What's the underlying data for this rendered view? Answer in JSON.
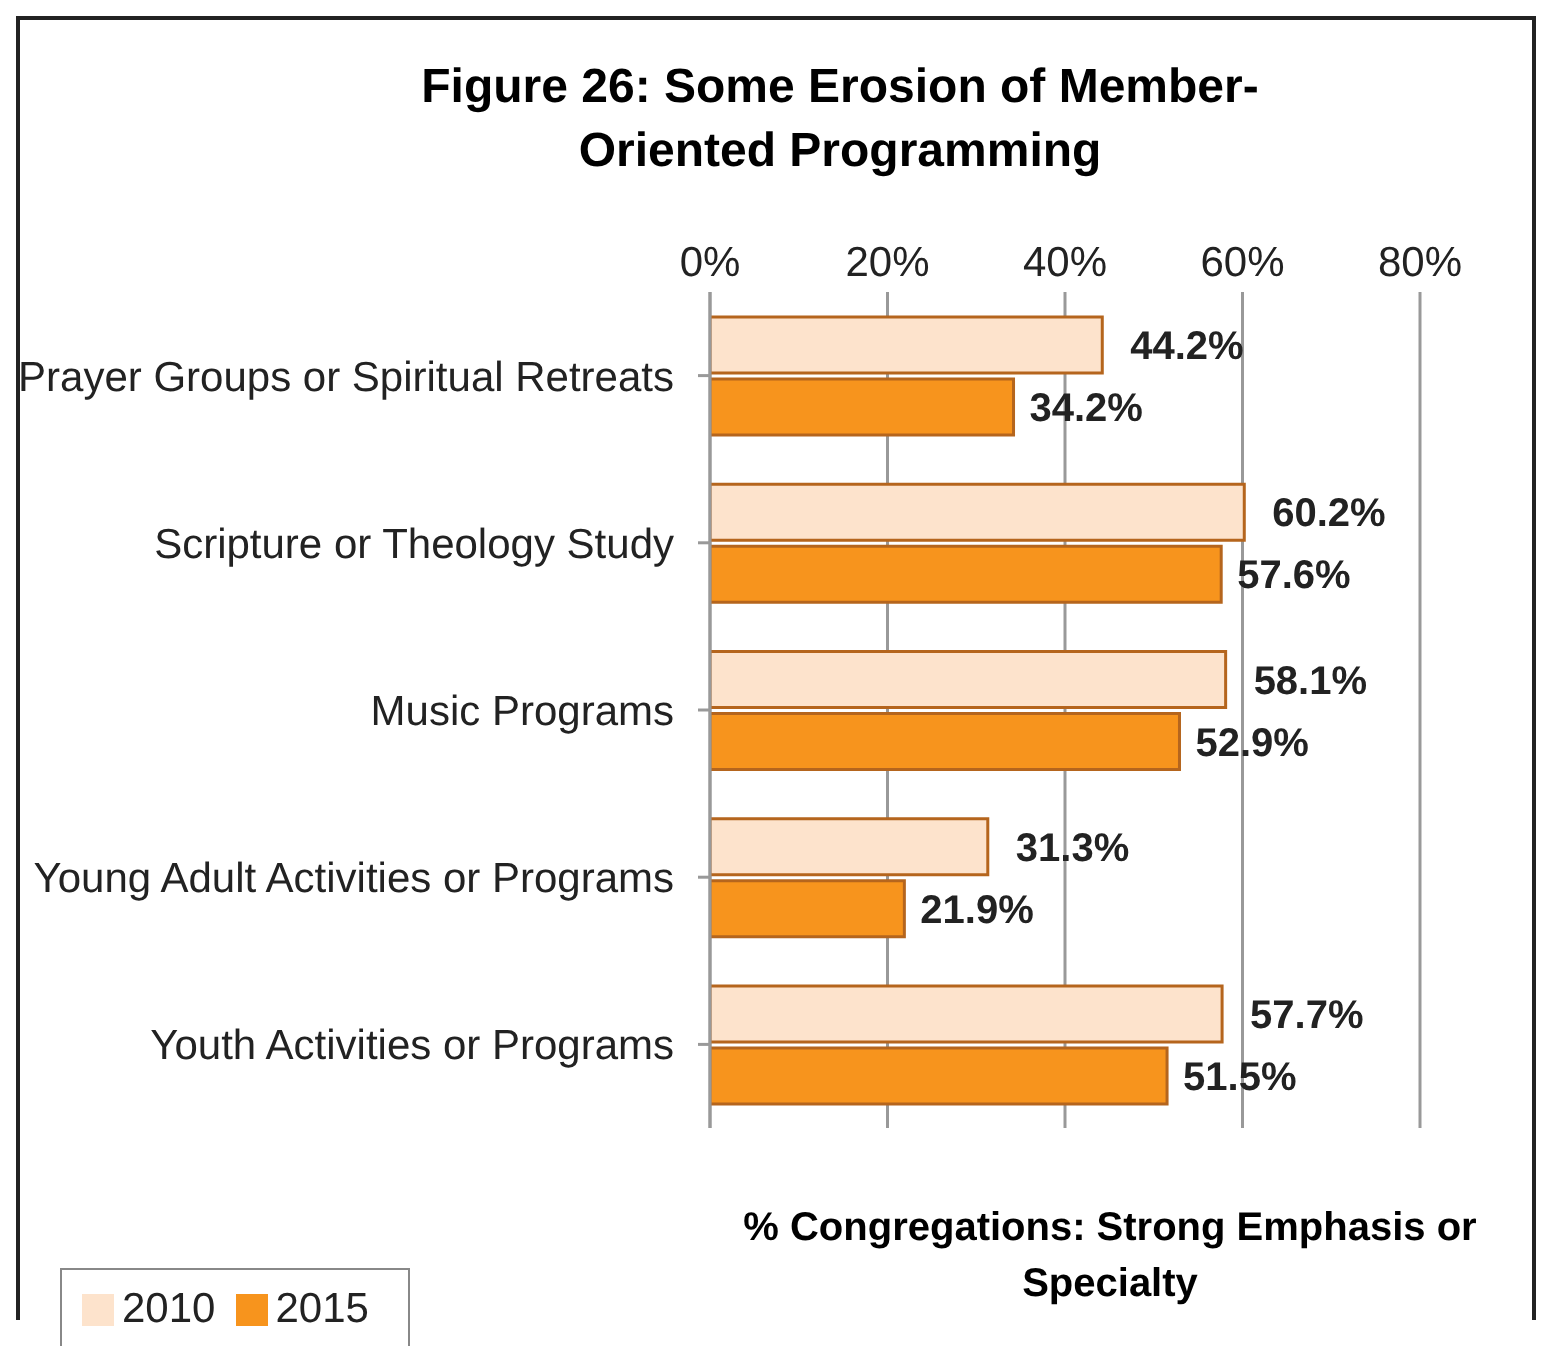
{
  "chart_data": {
    "type": "bar",
    "orientation": "horizontal",
    "title": "Figure 26: Some Erosion of Member-Oriented Programming",
    "xlabel": "% Congregations: Strong Emphasis or Specialty",
    "categories": [
      "Prayer Groups or Spiritual Retreats",
      "Scripture or Theology Study",
      "Music Programs",
      "Young Adult Activities or Programs",
      "Youth Activities or Programs"
    ],
    "series": [
      {
        "name": "2010",
        "color": "#fde3cc",
        "values": [
          44.2,
          60.2,
          58.1,
          31.3,
          57.7
        ],
        "value_labels": [
          "44.2%",
          "60.2%",
          "58.1%",
          "31.3%",
          "57.7%"
        ]
      },
      {
        "name": "2015",
        "color": "#f7941d",
        "values": [
          34.2,
          57.6,
          52.9,
          21.9,
          51.5
        ],
        "value_labels": [
          "34.2%",
          "57.6%",
          "52.9%",
          "21.9%",
          "51.5%"
        ]
      }
    ],
    "xlim": [
      0,
      80
    ],
    "xticks": [
      {
        "value": 0,
        "label": "0%"
      },
      {
        "value": 20,
        "label": "20%"
      },
      {
        "value": 40,
        "label": "40%"
      },
      {
        "value": 60,
        "label": "60%"
      },
      {
        "value": 80,
        "label": "80%"
      }
    ],
    "grid": "x",
    "legend": "bottom left"
  }
}
